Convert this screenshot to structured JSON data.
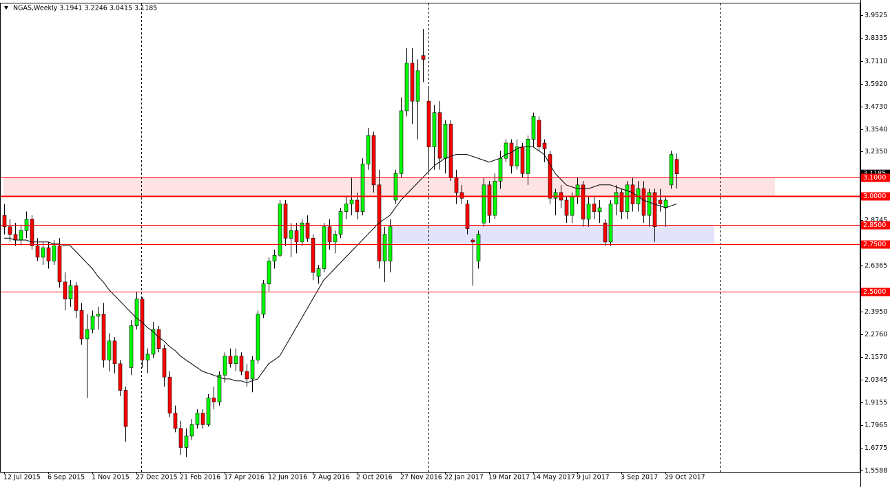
{
  "chart_data": {
    "type": "candlestick",
    "title": "NGAS,Weekly  3.1941 3.2246 3.0415 3.1185",
    "categories": [
      "12 Jul 2015",
      null,
      null,
      null,
      null,
      null,
      null,
      null,
      "6 Sep 2015",
      null,
      null,
      null,
      null,
      null,
      null,
      null,
      "1 Nov 2015",
      null,
      null,
      null,
      null,
      null,
      null,
      null,
      "27 Dec 2015",
      null,
      null,
      null,
      null,
      null,
      null,
      null,
      "21 Feb 2016",
      null,
      null,
      null,
      null,
      null,
      null,
      null,
      "17 Apr 2016",
      null,
      null,
      null,
      null,
      null,
      null,
      null,
      "12 Jun 2016",
      null,
      null,
      null,
      null,
      null,
      null,
      null,
      "7 Aug 2016",
      null,
      null,
      null,
      null,
      null,
      null,
      null,
      "2 Oct 2016",
      null,
      null,
      null,
      null,
      null,
      null,
      null,
      "27 Nov 2016",
      null,
      null,
      null,
      null,
      null,
      null,
      null,
      "22 Jan 2017",
      null,
      null,
      null,
      null,
      null,
      null,
      null,
      "19 Mar 2017",
      null,
      null,
      null,
      null,
      null,
      null,
      null,
      "14 May 2017",
      null,
      null,
      null,
      null,
      null,
      null,
      null,
      "9 Jul 2017",
      null,
      null,
      null,
      null,
      null,
      null,
      null,
      "3 Sep 2017",
      null,
      null,
      null,
      null,
      null,
      null,
      null,
      "29 Oct 2017",
      null,
      null
    ],
    "open": [
      2.9,
      2.84,
      2.8,
      2.77,
      2.82,
      2.88,
      2.74,
      2.68,
      2.73,
      2.66,
      2.74,
      2.55,
      2.46,
      2.53,
      2.4,
      2.25,
      2.3,
      2.37,
      2.38,
      2.14,
      2.24,
      2.12,
      1.98,
      2.1,
      2.32,
      2.46,
      2.14,
      2.17,
      2.3,
      2.2,
      2.05,
      1.86,
      1.78,
      1.68,
      1.74,
      1.8,
      1.86,
      1.8,
      1.94,
      1.92,
      2.06,
      2.16,
      2.12,
      2.16,
      2.08,
      2.04,
      2.14,
      2.38,
      2.54,
      2.66,
      2.69,
      2.96,
      2.78,
      2.82,
      2.76,
      2.86,
      2.78,
      2.58,
      2.62,
      2.84,
      2.76,
      2.8,
      2.92,
      2.96,
      2.98,
      2.92,
      3.17,
      3.32,
      3.06,
      2.66,
      2.66,
      2.98,
      3.12,
      3.45,
      3.7,
      3.5,
      3.74,
      3.5,
      3.26,
      3.44,
      3.2,
      3.38,
      3.1,
      3.02,
      2.96,
      2.77,
      2.66,
      2.86,
      3.06,
      2.9,
      3.08,
      3.2,
      3.28,
      3.16,
      3.26,
      3.12,
      3.3,
      3.4,
      3.28,
      3.22,
      2.99,
      3.02,
      2.98,
      2.9,
      3.0,
      3.06,
      2.88,
      2.96,
      2.92,
      2.86,
      2.76,
      2.96,
      3.02,
      2.92,
      3.06,
      2.96,
      3.04,
      2.9,
      3.02,
      2.98,
      2.94,
      3.06,
      3.1941
    ],
    "high": [
      2.96,
      2.88,
      2.86,
      2.85,
      2.92,
      2.9,
      2.78,
      2.76,
      2.76,
      2.77,
      2.78,
      2.6,
      2.56,
      2.55,
      2.44,
      2.38,
      2.4,
      2.42,
      2.44,
      2.28,
      2.26,
      2.14,
      2.0,
      2.35,
      2.5,
      2.47,
      2.2,
      2.34,
      2.32,
      2.22,
      2.08,
      1.9,
      1.82,
      1.78,
      1.83,
      1.88,
      1.88,
      1.96,
      2.0,
      2.08,
      2.18,
      2.2,
      2.2,
      2.18,
      2.12,
      2.16,
      2.4,
      2.56,
      2.68,
      2.72,
      2.98,
      2.98,
      2.86,
      2.86,
      2.88,
      2.9,
      2.8,
      2.64,
      2.86,
      2.88,
      2.82,
      2.94,
      3.0,
      3.1,
      3.02,
      3.2,
      3.36,
      3.34,
      3.14,
      2.84,
      2.88,
      3.14,
      3.52,
      3.78,
      3.78,
      3.72,
      3.88,
      3.58,
      3.48,
      3.5,
      3.4,
      3.4,
      3.14,
      3.06,
      2.98,
      2.78,
      2.82,
      3.1,
      3.08,
      3.12,
      3.24,
      3.3,
      3.3,
      3.3,
      3.28,
      3.32,
      3.44,
      3.42,
      3.3,
      3.24,
      3.04,
      3.06,
      3.0,
      3.02,
      3.1,
      3.08,
      3.0,
      3.0,
      2.98,
      2.88,
      2.98,
      3.06,
      3.04,
      3.08,
      3.1,
      3.08,
      3.08,
      3.04,
      3.04,
      3.04,
      3.0,
      3.24,
      3.2246
    ],
    "low": [
      2.8,
      2.76,
      2.74,
      2.74,
      2.78,
      2.72,
      2.66,
      2.64,
      2.62,
      2.64,
      2.52,
      2.4,
      2.42,
      2.36,
      2.22,
      1.94,
      2.28,
      2.3,
      2.1,
      2.08,
      2.07,
      1.95,
      1.71,
      2.06,
      2.3,
      2.1,
      2.07,
      2.15,
      2.18,
      2.0,
      1.84,
      1.76,
      1.64,
      1.63,
      1.72,
      1.78,
      1.78,
      1.79,
      1.88,
      1.9,
      2.02,
      2.1,
      2.08,
      2.06,
      2.0,
      1.97,
      2.12,
      2.36,
      2.5,
      2.62,
      2.68,
      2.74,
      2.68,
      2.7,
      2.74,
      2.76,
      2.56,
      2.54,
      2.6,
      2.72,
      2.7,
      2.78,
      2.88,
      2.9,
      2.88,
      2.9,
      3.14,
      3.02,
      2.62,
      2.55,
      2.6,
      2.96,
      3.1,
      3.42,
      3.38,
      3.3,
      3.6,
      3.14,
      3.14,
      3.14,
      3.12,
      3.08,
      2.96,
      2.96,
      2.8,
      2.53,
      2.62,
      2.84,
      2.86,
      2.88,
      3.04,
      3.18,
      3.12,
      3.14,
      3.1,
      3.06,
      3.26,
      3.24,
      3.18,
      2.96,
      2.9,
      2.94,
      2.86,
      2.86,
      2.96,
      2.84,
      2.84,
      2.88,
      2.86,
      2.74,
      2.74,
      2.9,
      2.88,
      2.88,
      2.92,
      2.92,
      2.86,
      2.84,
      2.76,
      2.92,
      2.84,
      3.04,
      3.0415
    ],
    "close": [
      2.84,
      2.8,
      2.77,
      2.82,
      2.88,
      2.74,
      2.68,
      2.73,
      2.66,
      2.74,
      2.55,
      2.46,
      2.53,
      2.4,
      2.25,
      2.3,
      2.37,
      2.38,
      2.14,
      2.24,
      2.12,
      1.98,
      1.79,
      2.32,
      2.46,
      2.14,
      2.17,
      2.3,
      2.2,
      2.05,
      1.86,
      1.78,
      1.68,
      1.74,
      1.8,
      1.86,
      1.8,
      1.94,
      1.92,
      2.06,
      2.16,
      2.12,
      2.16,
      2.08,
      2.04,
      2.14,
      2.38,
      2.54,
      2.66,
      2.69,
      2.96,
      2.78,
      2.82,
      2.76,
      2.86,
      2.78,
      2.6,
      2.62,
      2.84,
      2.76,
      2.8,
      2.92,
      2.96,
      2.98,
      2.92,
      3.17,
      3.32,
      3.06,
      2.66,
      2.8,
      2.84,
      3.12,
      3.45,
      3.7,
      3.5,
      3.66,
      3.72,
      3.26,
      3.44,
      3.2,
      3.38,
      3.1,
      3.02,
      2.99,
      2.83,
      2.76,
      2.8,
      3.06,
      2.9,
      3.08,
      3.2,
      3.28,
      3.16,
      3.26,
      3.12,
      3.3,
      3.42,
      3.26,
      3.25,
      2.99,
      3.02,
      2.98,
      2.9,
      3.0,
      3.06,
      2.88,
      2.96,
      2.92,
      2.94,
      2.76,
      2.96,
      3.02,
      2.92,
      3.06,
      2.96,
      3.04,
      2.9,
      3.02,
      2.84,
      2.96,
      2.98,
      3.22,
      3.1185
    ],
    "bull_color": "#00ff00",
    "bear_color": "#ff0000",
    "wick_color": "#000000",
    "ma": {
      "color": "#000000",
      "values": [
        2.78,
        2.78,
        2.77,
        2.77,
        2.77,
        2.76,
        2.76,
        2.76,
        2.76,
        2.75,
        2.75,
        2.74,
        2.74,
        2.71,
        2.68,
        2.65,
        2.62,
        2.58,
        2.55,
        2.51,
        2.48,
        2.45,
        2.42,
        2.39,
        2.36,
        2.34,
        2.31,
        2.29,
        2.26,
        2.24,
        2.21,
        2.19,
        2.16,
        2.14,
        2.12,
        2.1,
        2.08,
        2.07,
        2.06,
        2.05,
        2.04,
        2.04,
        2.03,
        2.03,
        2.02,
        2.03,
        2.04,
        2.08,
        2.12,
        2.14,
        2.16,
        2.21,
        2.26,
        2.31,
        2.36,
        2.41,
        2.46,
        2.51,
        2.56,
        2.59,
        2.62,
        2.65,
        2.68,
        2.71,
        2.74,
        2.77,
        2.8,
        2.83,
        2.86,
        2.88,
        2.9,
        2.94,
        2.98,
        3.01,
        3.04,
        3.07,
        3.1,
        3.13,
        3.16,
        3.18,
        3.2,
        3.21,
        3.22,
        3.22,
        3.22,
        3.21,
        3.2,
        3.19,
        3.18,
        3.19,
        3.2,
        3.22,
        3.23,
        3.25,
        3.26,
        3.26,
        3.26,
        3.24,
        3.22,
        3.17,
        3.12,
        3.09,
        3.06,
        3.05,
        3.04,
        3.04,
        3.04,
        3.05,
        3.06,
        3.06,
        3.06,
        3.05,
        3.04,
        3.03,
        3.02,
        3.0,
        2.98,
        2.97,
        2.96,
        2.95,
        2.94,
        2.95,
        2.96
      ]
    },
    "ylim": [
      1.5516,
      4.014
    ],
    "yticks": [
      3.9525,
      3.8335,
      {
        "value": 3.711,
        "label": "3.7110"
      },
      {
        "value": 3.592,
        "label": "3.5920"
      },
      {
        "value": 3.473,
        "label": "3.4730"
      },
      {
        "value": 3.354,
        "label": "3.3540"
      },
      {
        "value": 3.235,
        "label": "3.2350"
      },
      2.8745,
      2.6365,
      {
        "value": 2.395,
        "label": "2.3950"
      },
      {
        "value": 2.276,
        "label": "2.2760"
      },
      {
        "value": 2.157,
        "label": "2.1570"
      },
      2.0345,
      1.9155,
      1.7965,
      1.6775,
      1.5588
    ],
    "levels": [
      {
        "value": 3.1,
        "label": "3.1000"
      },
      {
        "value": 3.0,
        "label": "3.0000"
      },
      {
        "value": 2.85,
        "label": "2.8500"
      },
      {
        "value": 2.75,
        "label": "2.7500"
      },
      {
        "value": 2.5,
        "label": "2.5000"
      }
    ],
    "level_color": "#ff0000",
    "zones": [
      {
        "from": 3.0,
        "to": 3.1,
        "color": "#fde3e3"
      },
      {
        "from": 2.75,
        "to": 2.85,
        "color": "#e3e3fb"
      }
    ]
  }
}
